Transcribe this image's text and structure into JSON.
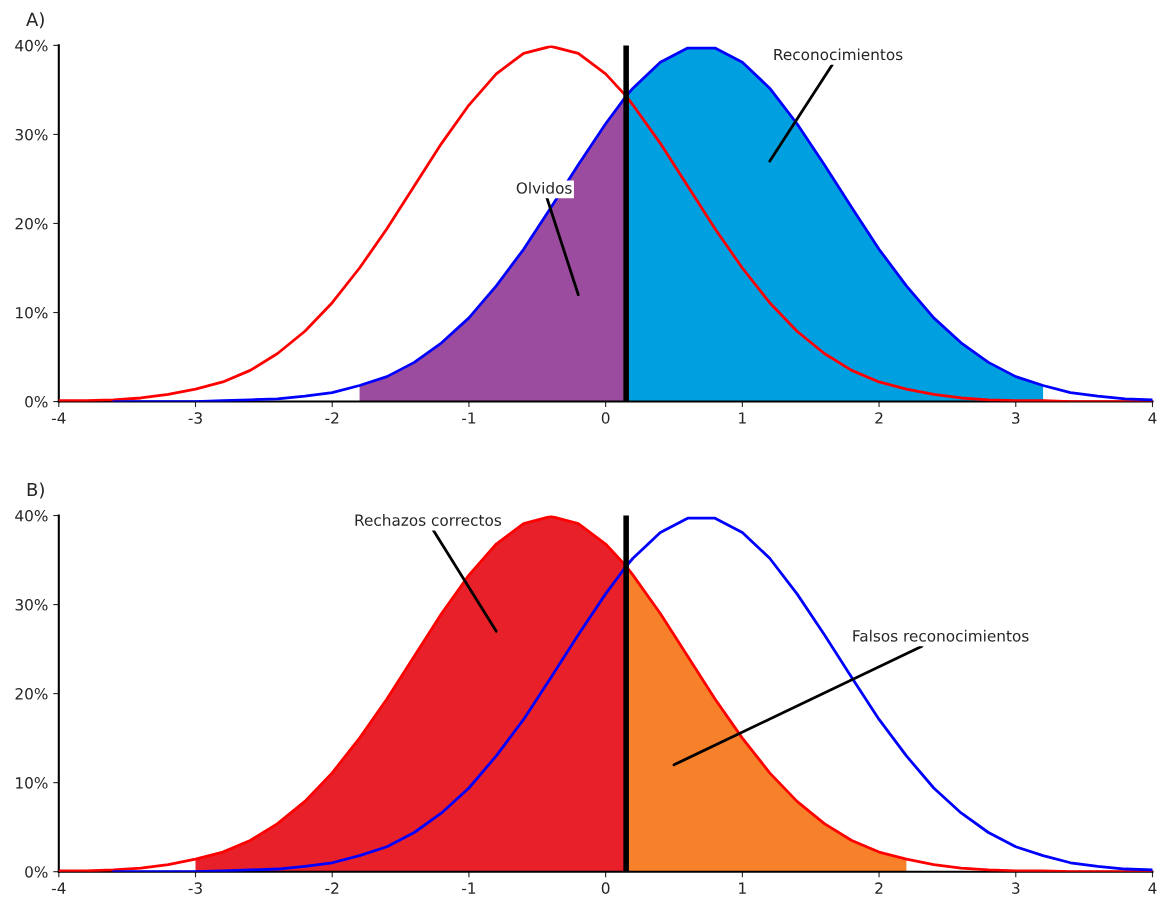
{
  "chart_data": [
    {
      "type": "line",
      "title": "A)",
      "xlim": [
        -4,
        4
      ],
      "ylim": [
        0,
        40
      ],
      "xticks": [
        -4,
        -3,
        -2,
        -1,
        0,
        1,
        2,
        3,
        4
      ],
      "yticks": [
        {
          "value": 0,
          "label": "0%"
        },
        {
          "value": 10,
          "label": "10%"
        },
        {
          "value": 20,
          "label": "20%"
        },
        {
          "value": 30,
          "label": "30%"
        },
        {
          "value": 40,
          "label": "40%"
        }
      ],
      "grid": false,
      "legend": false,
      "series": [
        {
          "type": "area",
          "color": "#9b4c9e",
          "x": [
            -1.8,
            -1.6,
            -1.4,
            -1.2,
            -1.0,
            -0.8,
            -0.6,
            -0.4,
            -0.2,
            0.0,
            0.15
          ],
          "values": [
            1.8,
            2.8,
            4.4,
            6.6,
            9.4,
            13.0,
            17.1,
            21.8,
            26.6,
            31.2,
            34.3
          ]
        },
        {
          "type": "area",
          "color": "#00a0e0",
          "x": [
            0.15,
            0.2,
            0.4,
            0.6,
            0.8,
            1.0,
            1.2,
            1.4,
            1.6,
            1.8,
            2.0,
            2.2,
            2.4,
            2.6,
            2.8,
            3.0,
            3.2
          ],
          "values": [
            34.3,
            35.2,
            38.1,
            39.7,
            39.7,
            38.1,
            35.2,
            31.2,
            26.6,
            21.8,
            17.1,
            13.0,
            9.4,
            6.6,
            4.4,
            2.8,
            1.8
          ]
        },
        {
          "type": "line",
          "color": "#ff0000",
          "x": [
            -4.0,
            -3.8,
            -3.6,
            -3.4,
            -3.2,
            -3.0,
            -2.8,
            -2.6,
            -2.4,
            -2.2,
            -2.0,
            -1.8,
            -1.6,
            -1.4,
            -1.2,
            -1.0,
            -0.8,
            -0.6,
            -0.4,
            -0.2,
            0.0,
            0.15,
            0.2,
            0.4,
            0.6,
            0.8,
            1.0,
            1.2,
            1.4,
            1.6,
            1.8,
            2.0,
            2.2,
            2.4,
            2.6,
            2.8,
            3.0,
            3.2,
            3.4,
            3.6,
            3.8,
            4.0
          ],
          "values": [
            0.1,
            0.1,
            0.2,
            0.4,
            0.8,
            1.4,
            2.2,
            3.5,
            5.4,
            7.9,
            11.1,
            15.0,
            19.4,
            24.2,
            29.0,
            33.3,
            36.8,
            39.1,
            39.9,
            39.1,
            36.8,
            34.3,
            33.3,
            29.0,
            24.2,
            19.4,
            15.0,
            11.1,
            7.9,
            5.4,
            3.5,
            2.2,
            1.4,
            0.8,
            0.4,
            0.2,
            0.1,
            0.1,
            0.0,
            0.0,
            0.0,
            0.0
          ]
        },
        {
          "type": "line",
          "color": "#0000ff",
          "x": [
            -3.6,
            -3.4,
            -3.2,
            -3.0,
            -2.8,
            -2.6,
            -2.4,
            -2.2,
            -2.0,
            -1.8,
            -1.6,
            -1.4,
            -1.2,
            -1.0,
            -0.8,
            -0.6,
            -0.4,
            -0.2,
            0.0,
            0.15,
            0.2,
            0.4,
            0.6,
            0.8,
            1.0,
            1.2,
            1.4,
            1.6,
            1.8,
            2.0,
            2.2,
            2.4,
            2.6,
            2.8,
            3.0,
            3.2,
            3.4,
            3.6,
            3.8,
            4.0
          ],
          "values": [
            0.0,
            0.0,
            0.0,
            0.0,
            0.1,
            0.2,
            0.3,
            0.6,
            1.0,
            1.8,
            2.8,
            4.4,
            6.6,
            9.4,
            13.0,
            17.1,
            21.8,
            26.6,
            31.2,
            34.3,
            35.2,
            38.1,
            39.7,
            39.7,
            38.1,
            35.2,
            31.2,
            26.6,
            21.8,
            17.1,
            13.0,
            9.4,
            6.6,
            4.4,
            2.8,
            1.8,
            1.0,
            0.6,
            0.3,
            0.2
          ]
        }
      ],
      "ref_lines": [
        {
          "axis": "x",
          "value": 0.15,
          "color": "#000000"
        }
      ],
      "annotations": [
        "Olvidos",
        "Reconocimientos"
      ]
    },
    {
      "type": "line",
      "title": "B)",
      "xlim": [
        -4,
        4
      ],
      "ylim": [
        0,
        40
      ],
      "xticks": [
        -4,
        -3,
        -2,
        -1,
        0,
        1,
        2,
        3,
        4
      ],
      "yticks": [
        {
          "value": 0,
          "label": "0%"
        },
        {
          "value": 10,
          "label": "10%"
        },
        {
          "value": 20,
          "label": "20%"
        },
        {
          "value": 30,
          "label": "30%"
        },
        {
          "value": 40,
          "label": "40%"
        }
      ],
      "grid": false,
      "legend": false,
      "series": [
        {
          "type": "area",
          "color": "#e8202a",
          "x": [
            -3.0,
            -2.8,
            -2.6,
            -2.4,
            -2.2,
            -2.0,
            -1.8,
            -1.6,
            -1.4,
            -1.2,
            -1.0,
            -0.8,
            -0.6,
            -0.4,
            -0.2,
            0.0,
            0.15
          ],
          "values": [
            1.4,
            2.2,
            3.5,
            5.4,
            7.9,
            11.1,
            15.0,
            19.4,
            24.2,
            29.0,
            33.3,
            36.8,
            39.1,
            39.9,
            39.1,
            36.8,
            34.3
          ]
        },
        {
          "type": "area",
          "color": "#f7812a",
          "x": [
            0.15,
            0.2,
            0.4,
            0.6,
            0.8,
            1.0,
            1.2,
            1.4,
            1.6,
            1.8,
            2.0,
            2.2
          ],
          "values": [
            34.3,
            33.3,
            29.0,
            24.2,
            19.4,
            15.0,
            11.1,
            7.9,
            5.4,
            3.5,
            2.2,
            1.4
          ]
        },
        {
          "type": "line",
          "color": "#ff0000",
          "x": [
            -4.0,
            -3.8,
            -3.6,
            -3.4,
            -3.2,
            -3.0,
            -2.8,
            -2.6,
            -2.4,
            -2.2,
            -2.0,
            -1.8,
            -1.6,
            -1.4,
            -1.2,
            -1.0,
            -0.8,
            -0.6,
            -0.4,
            -0.2,
            0.0,
            0.15,
            0.2,
            0.4,
            0.6,
            0.8,
            1.0,
            1.2,
            1.4,
            1.6,
            1.8,
            2.0,
            2.2,
            2.4,
            2.6,
            2.8,
            3.0,
            3.2,
            3.4,
            3.6,
            3.8,
            4.0
          ],
          "values": [
            0.1,
            0.1,
            0.2,
            0.4,
            0.8,
            1.4,
            2.2,
            3.5,
            5.4,
            7.9,
            11.1,
            15.0,
            19.4,
            24.2,
            29.0,
            33.3,
            36.8,
            39.1,
            39.9,
            39.1,
            36.8,
            34.3,
            33.3,
            29.0,
            24.2,
            19.4,
            15.0,
            11.1,
            7.9,
            5.4,
            3.5,
            2.2,
            1.4,
            0.8,
            0.4,
            0.2,
            0.1,
            0.1,
            0.0,
            0.0,
            0.0,
            0.0
          ]
        },
        {
          "type": "line",
          "color": "#0000ff",
          "x": [
            -3.6,
            -3.4,
            -3.2,
            -3.0,
            -2.8,
            -2.6,
            -2.4,
            -2.2,
            -2.0,
            -1.8,
            -1.6,
            -1.4,
            -1.2,
            -1.0,
            -0.8,
            -0.6,
            -0.4,
            -0.2,
            0.0,
            0.15,
            0.2,
            0.4,
            0.6,
            0.8,
            1.0,
            1.2,
            1.4,
            1.6,
            1.8,
            2.0,
            2.2,
            2.4,
            2.6,
            2.8,
            3.0,
            3.2,
            3.4,
            3.6,
            3.8,
            4.0
          ],
          "values": [
            0.0,
            0.0,
            0.0,
            0.0,
            0.1,
            0.2,
            0.3,
            0.6,
            1.0,
            1.8,
            2.8,
            4.4,
            6.6,
            9.4,
            13.0,
            17.1,
            21.8,
            26.6,
            31.2,
            34.3,
            35.2,
            38.1,
            39.7,
            39.7,
            38.1,
            35.2,
            31.2,
            26.6,
            21.8,
            17.1,
            13.0,
            9.4,
            6.6,
            4.4,
            2.8,
            1.8,
            1.0,
            0.6,
            0.3,
            0.2
          ]
        }
      ],
      "ref_lines": [
        {
          "axis": "x",
          "value": 0.15,
          "color": "#000000"
        }
      ],
      "annotations": [
        "Rechazos correctos",
        "Falsos reconocimientos"
      ]
    }
  ]
}
